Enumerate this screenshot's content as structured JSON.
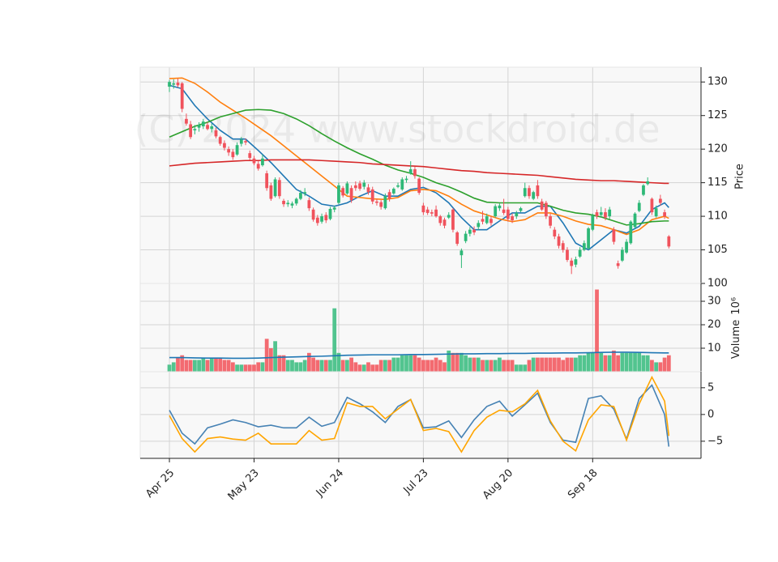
{
  "chart_data": {
    "type": "candlestick",
    "watermark": "(C) 2024 www.stockdroid.de",
    "ylabel": "Price",
    "volume_label": "Volume",
    "volume_scale": "10⁶",
    "up_color": "#2eb877",
    "down_color": "#f0525c",
    "volume_up_color": "#52c48f",
    "volume_down_color": "#f36a70",
    "grid": true,
    "xlim": [
      -6.9,
      125.6
    ],
    "xticks": [
      {
        "value": 0,
        "label": "Apr 25"
      },
      {
        "value": 20,
        "label": "May 23"
      },
      {
        "value": 40,
        "label": "Jun 24"
      },
      {
        "value": 60,
        "label": "Jul 23"
      },
      {
        "value": 80,
        "label": "Aug 20"
      },
      {
        "value": 100,
        "label": "Sep 18"
      }
    ],
    "ylim": [
      100,
      132.2
    ],
    "yticks": [
      100,
      105,
      110,
      115,
      120,
      125,
      130
    ],
    "volume_ylim": [
      0,
      37.6
    ],
    "volume_yticks": [
      10,
      20,
      30
    ],
    "macd_ylim": [
      -8.2,
      8.0
    ],
    "macd_yticks": [
      {
        "value": -5,
        "label": "−5"
      },
      0,
      5
    ],
    "ohlc": [
      [
        129.3,
        130.3,
        128.5,
        130.0
      ],
      [
        129.6,
        130.4,
        129.0,
        129.8
      ],
      [
        129.9,
        130.5,
        129.2,
        129.5
      ],
      [
        129.8,
        130.0,
        125.5,
        126.0
      ],
      [
        124.5,
        125.3,
        123.5,
        123.8
      ],
      [
        123.7,
        124.2,
        121.5,
        121.8
      ],
      [
        122.8,
        123.6,
        122.2,
        123.0
      ],
      [
        123.2,
        124.0,
        122.6,
        123.6
      ],
      [
        123.4,
        124.5,
        123.0,
        124.1
      ],
      [
        123.6,
        124.0,
        122.8,
        123.0
      ],
      [
        123.0,
        123.8,
        122.5,
        123.4
      ],
      [
        122.8,
        123.2,
        121.6,
        121.9
      ],
      [
        121.8,
        122.0,
        120.5,
        120.8
      ],
      [
        120.9,
        121.3,
        119.8,
        120.2
      ],
      [
        120.0,
        120.4,
        119.0,
        119.5
      ],
      [
        119.6,
        120.0,
        118.4,
        118.8
      ],
      [
        119.2,
        121.0,
        119.0,
        120.6
      ],
      [
        120.8,
        121.8,
        120.4,
        121.4
      ],
      [
        121.2,
        121.6,
        120.6,
        121.0
      ],
      [
        119.4,
        119.8,
        118.4,
        118.7
      ],
      [
        118.6,
        119.0,
        117.6,
        117.9
      ],
      [
        117.8,
        118.2,
        116.8,
        117.1
      ],
      [
        117.6,
        119.2,
        117.4,
        118.6
      ],
      [
        116.4,
        116.8,
        113.8,
        114.2
      ],
      [
        114.6,
        115.0,
        112.3,
        112.6
      ],
      [
        113.0,
        115.8,
        112.8,
        115.5
      ],
      [
        115.4,
        115.8,
        112.6,
        113.0
      ],
      [
        112.3,
        112.6,
        111.4,
        111.8
      ],
      [
        111.8,
        112.4,
        111.4,
        112.0
      ],
      [
        111.6,
        112.2,
        111.2,
        111.9
      ],
      [
        111.9,
        112.8,
        111.6,
        112.6
      ],
      [
        112.6,
        113.9,
        112.4,
        113.5
      ],
      [
        113.4,
        114.2,
        113.0,
        113.6
      ],
      [
        112.4,
        112.8,
        110.8,
        111.2
      ],
      [
        111.0,
        111.3,
        109.2,
        109.5
      ],
      [
        109.8,
        110.2,
        108.6,
        109.0
      ],
      [
        109.2,
        110.4,
        108.9,
        110.0
      ],
      [
        110.2,
        110.6,
        109.0,
        109.4
      ],
      [
        109.6,
        111.4,
        109.4,
        111.1
      ],
      [
        111.0,
        111.6,
        110.6,
        111.3
      ],
      [
        112.0,
        115.0,
        111.8,
        114.6
      ],
      [
        114.2,
        114.5,
        112.8,
        113.1
      ],
      [
        113.4,
        115.2,
        113.2,
        114.9
      ],
      [
        114.2,
        114.6,
        112.0,
        112.4
      ],
      [
        114.6,
        115.2,
        113.8,
        114.2
      ],
      [
        114.9,
        115.3,
        113.8,
        114.1
      ],
      [
        114.4,
        115.4,
        114.0,
        115.0
      ],
      [
        114.3,
        114.8,
        113.2,
        113.6
      ],
      [
        114.0,
        114.4,
        111.8,
        112.2
      ],
      [
        112.2,
        112.6,
        111.6,
        112.0
      ],
      [
        112.1,
        112.4,
        111.0,
        111.4
      ],
      [
        111.2,
        113.4,
        111.0,
        113.0
      ],
      [
        113.6,
        114.0,
        112.2,
        112.6
      ],
      [
        113.4,
        114.3,
        113.2,
        114.1
      ],
      [
        114.4,
        115.0,
        114.2,
        114.6
      ],
      [
        114.0,
        115.8,
        113.8,
        115.5
      ],
      [
        115.4,
        116.0,
        115.0,
        115.6
      ],
      [
        116.4,
        118.2,
        116.2,
        117.0
      ],
      [
        117.0,
        117.4,
        115.6,
        116.0
      ],
      [
        115.6,
        115.8,
        113.2,
        113.5
      ],
      [
        111.6,
        112.0,
        110.2,
        110.6
      ],
      [
        111.0,
        111.4,
        110.2,
        110.5
      ],
      [
        110.6,
        111.0,
        110.0,
        110.4
      ],
      [
        111.0,
        111.6,
        109.8,
        110.0
      ],
      [
        110.0,
        110.2,
        108.6,
        109.0
      ],
      [
        109.5,
        109.8,
        108.2,
        108.6
      ],
      [
        109.8,
        110.6,
        109.6,
        110.2
      ],
      [
        111.0,
        111.2,
        107.6,
        108.0
      ],
      [
        107.6,
        107.8,
        105.6,
        105.9
      ],
      [
        104.2,
        105.2,
        102.3,
        104.9
      ],
      [
        106.3,
        107.8,
        106.0,
        107.4
      ],
      [
        107.4,
        108.4,
        107.0,
        108.0
      ],
      [
        108.0,
        108.5,
        107.2,
        107.6
      ],
      [
        108.4,
        109.4,
        108.0,
        109.0
      ],
      [
        109.6,
        110.8,
        108.8,
        109.2
      ],
      [
        109.0,
        110.4,
        108.8,
        110.0
      ],
      [
        109.6,
        110.0,
        108.6,
        109.0
      ],
      [
        110.0,
        111.8,
        109.8,
        111.5
      ],
      [
        111.2,
        111.9,
        110.8,
        111.6
      ],
      [
        111.0,
        112.6,
        110.2,
        110.5
      ],
      [
        111.0,
        111.4,
        109.2,
        109.6
      ],
      [
        110.0,
        110.4,
        109.0,
        109.4
      ],
      [
        110.0,
        110.8,
        109.6,
        110.5
      ],
      [
        110.8,
        111.4,
        110.6,
        111.2
      ],
      [
        113.0,
        115.0,
        112.8,
        114.2
      ],
      [
        114.2,
        114.6,
        112.6,
        113.0
      ],
      [
        112.6,
        113.8,
        112.4,
        113.6
      ],
      [
        114.6,
        115.4,
        112.6,
        113.0
      ],
      [
        112.2,
        112.6,
        110.8,
        111.0
      ],
      [
        112.0,
        112.3,
        109.6,
        110.0
      ],
      [
        110.0,
        110.4,
        108.2,
        108.6
      ],
      [
        108.0,
        108.4,
        106.6,
        107.0
      ],
      [
        107.0,
        107.4,
        105.2,
        105.6
      ],
      [
        106.0,
        106.4,
        104.6,
        105.0
      ],
      [
        105.0,
        105.4,
        103.2,
        103.5
      ],
      [
        103.4,
        103.8,
        101.4,
        102.6
      ],
      [
        102.8,
        104.0,
        102.4,
        103.6
      ],
      [
        104.0,
        105.4,
        103.8,
        105.0
      ],
      [
        105.0,
        106.4,
        104.8,
        106.0
      ],
      [
        105.2,
        108.4,
        105.0,
        108.2
      ],
      [
        108.0,
        110.4,
        107.8,
        110.1
      ],
      [
        110.6,
        111.0,
        109.6,
        110.0
      ],
      [
        110.2,
        111.4,
        109.8,
        110.6
      ],
      [
        110.6,
        111.2,
        109.4,
        109.8
      ],
      [
        110.0,
        111.4,
        109.6,
        111.0
      ],
      [
        108.0,
        108.4,
        105.8,
        106.2
      ],
      [
        103.0,
        103.4,
        102.2,
        102.6
      ],
      [
        103.4,
        105.4,
        103.2,
        105.0
      ],
      [
        104.6,
        106.6,
        104.4,
        106.2
      ],
      [
        106.0,
        109.4,
        105.8,
        109.2
      ],
      [
        108.4,
        110.6,
        108.2,
        110.4
      ],
      [
        110.8,
        112.4,
        110.6,
        112.0
      ],
      [
        113.2,
        114.8,
        113.0,
        114.6
      ],
      [
        114.8,
        115.8,
        114.6,
        115.2
      ],
      [
        112.6,
        112.8,
        110.2,
        110.6
      ],
      [
        110.0,
        111.6,
        109.8,
        111.2
      ],
      [
        112.6,
        113.2,
        111.6,
        112.0
      ],
      [
        110.6,
        111.0,
        109.6,
        110.0
      ],
      [
        107.0,
        107.2,
        105.2,
        105.5
      ]
    ],
    "volume": [
      3,
      4,
      6,
      7,
      5,
      5,
      5,
      5,
      6,
      5,
      6,
      6,
      6,
      5,
      5,
      4,
      3,
      3,
      3,
      3,
      3,
      4,
      4,
      14,
      10,
      13,
      7,
      7,
      5,
      5,
      4,
      4,
      5,
      8,
      6,
      5,
      5,
      5,
      5,
      27,
      8,
      5,
      5,
      6,
      4,
      3,
      3,
      4,
      3,
      3,
      5,
      5,
      5,
      6,
      6,
      7,
      7,
      7,
      7,
      6,
      5,
      5,
      5,
      6,
      5,
      4,
      9,
      8,
      8,
      8,
      7,
      6,
      6,
      6,
      5,
      5,
      5,
      5,
      6,
      5,
      5,
      5,
      3,
      3,
      3,
      5,
      6,
      6,
      6,
      6,
      6,
      6,
      6,
      5,
      6,
      6,
      6,
      7,
      7,
      8,
      8,
      35,
      8,
      7,
      7,
      9,
      7,
      8,
      8,
      8,
      8,
      8,
      7,
      7,
      5,
      4,
      4,
      6,
      7
    ],
    "line_x": [
      0,
      3,
      6,
      9,
      12,
      15,
      18,
      21,
      24,
      27,
      30,
      33,
      36,
      39,
      42,
      45,
      48,
      51,
      54,
      57,
      60,
      63,
      66,
      69,
      72,
      75,
      78,
      81,
      84,
      87,
      90,
      93,
      96,
      99,
      102,
      105,
      108,
      111,
      114,
      117,
      118
    ],
    "ma_lines": [
      {
        "color": "#1f77b4",
        "values": [
          129.5,
          129.0,
          126.5,
          124.5,
          122.8,
          121.5,
          121.5,
          119.8,
          118.0,
          116.0,
          114.0,
          113.0,
          111.8,
          111.5,
          112.0,
          113.0,
          113.8,
          113.0,
          113.0,
          114.0,
          114.3,
          113.5,
          112.0,
          109.8,
          108.0,
          108.0,
          109.3,
          110.5,
          110.5,
          111.5,
          111.5,
          109.0,
          106.0,
          105.0,
          106.5,
          108.0,
          107.5,
          108.5,
          111.0,
          112.0,
          111.3
        ]
      },
      {
        "color": "#ff7f0e",
        "values": [
          130.5,
          130.6,
          129.8,
          128.5,
          127.0,
          125.8,
          124.6,
          123.3,
          122.0,
          120.5,
          119.0,
          117.5,
          116.0,
          114.5,
          113.0,
          112.8,
          112.6,
          112.5,
          112.8,
          113.8,
          114.0,
          113.8,
          113.0,
          111.8,
          110.8,
          110.2,
          109.6,
          109.2,
          109.5,
          110.5,
          110.5,
          110.0,
          109.3,
          108.8,
          108.6,
          108.0,
          107.3,
          108.0,
          109.5,
          110.0,
          109.7
        ]
      },
      {
        "color": "#2ca02c",
        "values": [
          121.8,
          122.6,
          123.4,
          124.0,
          124.8,
          125.3,
          125.8,
          125.9,
          125.8,
          125.3,
          124.5,
          123.5,
          122.3,
          121.2,
          120.2,
          119.3,
          118.5,
          117.6,
          116.9,
          116.4,
          115.8,
          115.0,
          114.4,
          113.6,
          112.7,
          112.1,
          112.0,
          112.0,
          112.0,
          112.0,
          111.5,
          110.9,
          110.5,
          110.3,
          109.9,
          109.3,
          108.7,
          108.9,
          109.2,
          109.3,
          109.3
        ]
      },
      {
        "color": "#d62728",
        "values": [
          117.5,
          117.7,
          117.9,
          118.0,
          118.1,
          118.2,
          118.3,
          118.3,
          118.4,
          118.4,
          118.4,
          118.4,
          118.3,
          118.2,
          118.1,
          118.0,
          117.8,
          117.7,
          117.6,
          117.5,
          117.4,
          117.2,
          117.0,
          116.8,
          116.7,
          116.5,
          116.4,
          116.3,
          116.2,
          116.1,
          115.9,
          115.7,
          115.5,
          115.4,
          115.3,
          115.3,
          115.2,
          115.1,
          115.0,
          114.9,
          114.9
        ]
      }
    ],
    "volume_ma": {
      "color": "#1f77b4",
      "values": [
        6.0,
        6.0,
        5.9,
        5.8,
        5.8,
        5.7,
        5.7,
        5.8,
        6.0,
        6.2,
        6.3,
        6.5,
        6.6,
        6.8,
        7.0,
        7.1,
        7.2,
        7.2,
        7.2,
        7.3,
        7.3,
        7.4,
        7.5,
        7.6,
        7.6,
        7.7,
        7.7,
        7.8,
        7.8,
        7.9,
        7.9,
        8.0,
        8.0,
        8.1,
        8.2,
        8.3,
        8.3,
        8.2,
        8.1,
        8.0,
        8.0
      ]
    },
    "macd_lines": [
      {
        "color": "#4682b4",
        "values": [
          0.8,
          -3.5,
          -5.5,
          -2.5,
          -1.8,
          -1.0,
          -1.5,
          -2.3,
          -2.0,
          -2.5,
          -2.5,
          -0.5,
          -2.2,
          -1.5,
          3.2,
          2.0,
          0.5,
          -1.5,
          1.5,
          2.8,
          -2.5,
          -2.3,
          -1.2,
          -4.3,
          -1.0,
          1.5,
          2.5,
          -0.3,
          1.8,
          4.0,
          -1.5,
          -4.8,
          -5.2,
          3.0,
          3.5,
          1.0,
          -4.6,
          3.0,
          5.5,
          0.0,
          -6.0
        ]
      },
      {
        "color": "#ffa500",
        "values": [
          -0.2,
          -4.5,
          -7.0,
          -4.5,
          -4.2,
          -4.6,
          -4.8,
          -3.5,
          -5.5,
          -5.5,
          -5.5,
          -3.0,
          -4.8,
          -4.5,
          2.2,
          1.5,
          1.5,
          -0.8,
          1.0,
          2.8,
          -3.0,
          -2.6,
          -3.2,
          -7.0,
          -3.0,
          -0.5,
          0.8,
          0.5,
          2.0,
          4.5,
          -1.2,
          -5.0,
          -6.8,
          -1.0,
          1.8,
          1.5,
          -4.8,
          2.0,
          7.0,
          2.5,
          -4.0
        ]
      }
    ]
  }
}
